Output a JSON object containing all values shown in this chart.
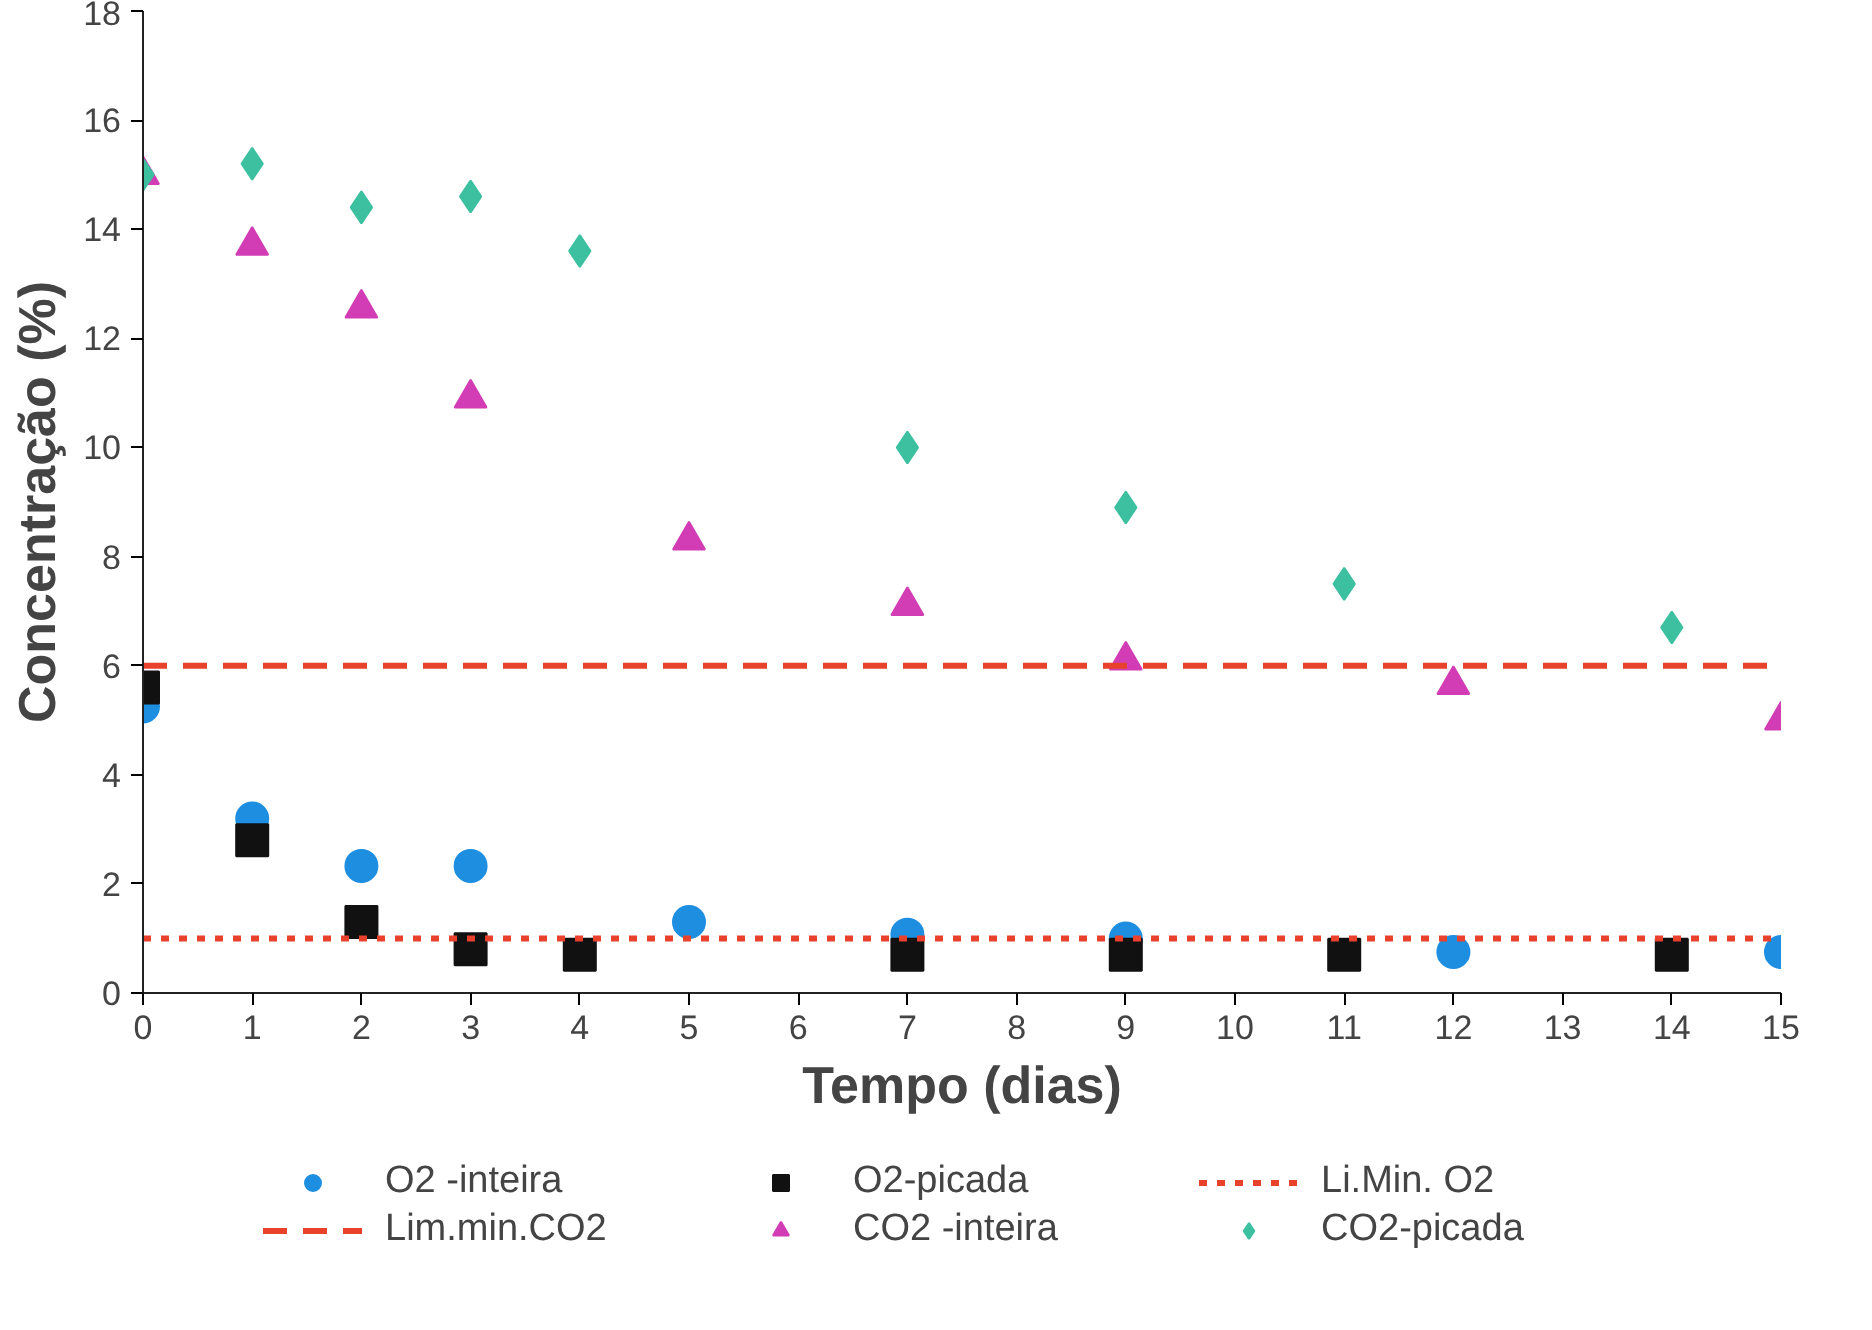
{
  "chart_data": {
    "type": "scatter",
    "xlabel": "Tempo (dias)",
    "ylabel": "Concentração (%)",
    "xlim": [
      0,
      15
    ],
    "xticks": [
      0,
      1,
      2,
      3,
      4,
      5,
      6,
      7,
      8,
      9,
      10,
      11,
      12,
      13,
      14,
      15
    ],
    "ylim": [
      0,
      18
    ],
    "yticks": [
      0,
      2,
      4,
      6,
      8,
      10,
      12,
      14,
      16,
      18
    ],
    "grid": false,
    "legend": "bottom",
    "series": [
      {
        "name": "O2 -inteira",
        "color": "#1e8fe0",
        "marker": "circle",
        "x": [
          0,
          1,
          2,
          3,
          5,
          7,
          9,
          12,
          15
        ],
        "values": [
          5.25,
          3.2,
          2.33,
          2.33,
          1.3,
          1.07,
          1.0,
          0.75,
          0.75
        ]
      },
      {
        "name": "O2-picada",
        "color": "#111111",
        "marker": "square",
        "x": [
          0,
          1,
          2,
          3,
          4,
          7,
          9,
          11,
          14
        ],
        "values": [
          5.6,
          2.8,
          1.3,
          0.8,
          0.7,
          0.7,
          0.7,
          0.7,
          0.7
        ]
      },
      {
        "name": "CO2 -inteira",
        "color": "#d23cb4",
        "marker": "triangle",
        "x": [
          0,
          1,
          2,
          3,
          5,
          7,
          9,
          12,
          15
        ],
        "values": [
          15.0,
          13.7,
          12.55,
          10.9,
          8.3,
          7.1,
          6.1,
          5.65,
          5.0
        ]
      },
      {
        "name": "CO2-picada",
        "color": "#3cc0a0",
        "marker": "diamond",
        "x": [
          0,
          1,
          2,
          3,
          4,
          7,
          9,
          11,
          14
        ],
        "values": [
          15.0,
          15.2,
          14.4,
          14.6,
          13.6,
          10.0,
          8.9,
          7.5,
          6.7
        ]
      }
    ],
    "ref_lines": [
      {
        "axis": "y",
        "value": 1,
        "label": "Li.Min. O2",
        "color": "#e8412c",
        "line_style": "dotted"
      },
      {
        "axis": "y",
        "value": 6,
        "label": "Lim.min.CO2",
        "color": "#e8412c",
        "line_style": "dashed"
      }
    ]
  }
}
